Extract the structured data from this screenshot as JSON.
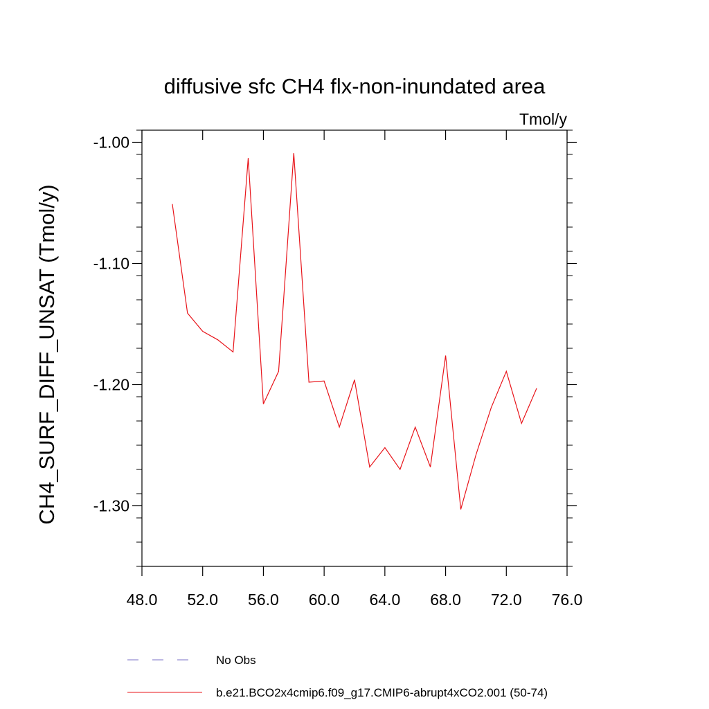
{
  "chart_data": {
    "type": "line",
    "title": "diffusive sfc CH4 flx-non-inundated area",
    "units": "Tmol/y",
    "xlabel": "",
    "ylabel": "CH4_SURF_DIFF_UNSAT  (Tmol/y)",
    "xlim": [
      48.0,
      76.0
    ],
    "ylim": [
      -1.35,
      -0.99
    ],
    "x_ticks": [
      48,
      52,
      56,
      60,
      64,
      68,
      72,
      76
    ],
    "x_tick_labels": [
      "48.0",
      "52.0",
      "56.0",
      "60.0",
      "64.0",
      "68.0",
      "72.0",
      "76.0"
    ],
    "y_ticks": [
      -1.0,
      -1.1,
      -1.2,
      -1.3
    ],
    "y_tick_labels": [
      "-1.00",
      "-1.10",
      "-1.20",
      "-1.30"
    ],
    "grid": false,
    "series": [
      {
        "name": "b.e21.BCO2x4cmip6.f09_g17.CMIP6-abrupt4xCO2.001 (50-74)",
        "color": "#e8141a",
        "style": "solid",
        "x": [
          50,
          51,
          52,
          53,
          54,
          55,
          56,
          57,
          58,
          59,
          60,
          61,
          62,
          63,
          64,
          65,
          66,
          67,
          68,
          69,
          70,
          71,
          72,
          73,
          74
        ],
        "values": [
          -1.051,
          -1.141,
          -1.156,
          -1.163,
          -1.173,
          -1.013,
          -1.216,
          -1.189,
          -1.009,
          -1.198,
          -1.197,
          -1.235,
          -1.196,
          -1.268,
          -1.252,
          -1.27,
          -1.235,
          -1.268,
          -1.176,
          -1.303,
          -1.258,
          -1.219,
          -1.189,
          -1.232,
          -1.203
        ]
      }
    ],
    "legend": [
      {
        "label": "No Obs",
        "color": "#7a6fc7",
        "style": "dashed"
      },
      {
        "label": "b.e21.BCO2x4cmip6.f09_g17.CMIP6-abrupt4xCO2.001 (50-74)",
        "color": "#e8141a",
        "style": "solid"
      }
    ],
    "legend_position": "bottom"
  }
}
